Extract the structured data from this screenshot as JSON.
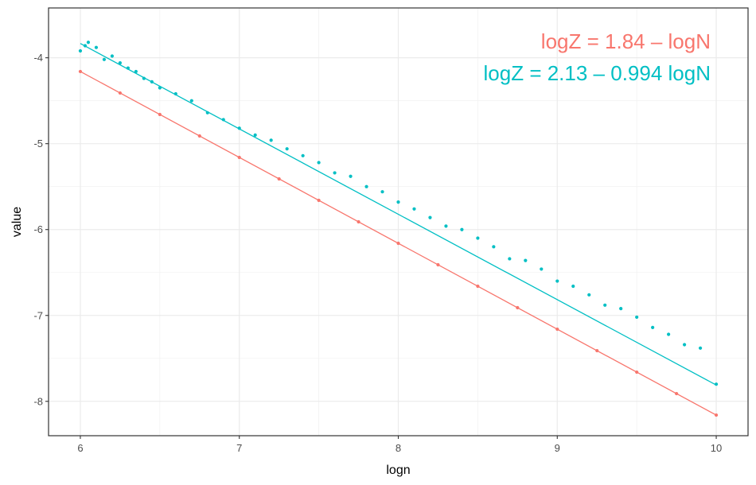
{
  "chart_data": {
    "type": "scatter",
    "xlabel": "logn",
    "ylabel": "value",
    "xlim": [
      5.8,
      10.2
    ],
    "ylim": [
      -8.4,
      -3.42
    ],
    "x_ticks": [
      6,
      7,
      8,
      9,
      10
    ],
    "x_tick_labels": [
      "6",
      "7",
      "8",
      "9",
      "10"
    ],
    "y_ticks": [
      -8,
      -7,
      -6,
      -5,
      -4
    ],
    "y_tick_labels": [
      "-8",
      "-7",
      "-6",
      "-5",
      "-4"
    ],
    "grid": true,
    "series": [
      {
        "color": "#f8766d",
        "x": [
          6.0,
          6.25,
          6.5,
          6.75,
          7.0,
          7.25,
          7.5,
          7.75,
          8.0,
          8.25,
          8.5,
          8.75,
          9.0,
          9.25,
          9.5,
          9.75,
          10.0
        ],
        "y": [
          -4.16,
          -4.41,
          -4.66,
          -4.91,
          -5.16,
          -5.41,
          -5.66,
          -5.91,
          -6.16,
          -6.41,
          -6.66,
          -6.91,
          -7.16,
          -7.41,
          -7.66,
          -7.91,
          -8.16
        ],
        "fit": {
          "intercept": 1.84,
          "slope": -1.0
        }
      },
      {
        "color": "#00bfc4",
        "x": [
          6.0,
          6.03,
          6.05,
          6.1,
          6.15,
          6.2,
          6.25,
          6.3,
          6.35,
          6.4,
          6.45,
          6.5,
          6.6,
          6.7,
          6.8,
          6.9,
          7.0,
          7.1,
          7.2,
          7.3,
          7.4,
          7.5,
          7.6,
          7.7,
          7.8,
          7.9,
          8.0,
          8.1,
          8.2,
          8.3,
          8.4,
          8.5,
          8.6,
          8.7,
          8.8,
          8.9,
          9.0,
          9.1,
          9.2,
          9.3,
          9.4,
          9.5,
          9.6,
          9.7,
          9.8,
          9.9,
          10.0
        ],
        "y": [
          -3.92,
          -3.86,
          -3.82,
          -3.88,
          -4.02,
          -3.98,
          -4.06,
          -4.12,
          -4.16,
          -4.24,
          -4.28,
          -4.35,
          -4.42,
          -4.5,
          -4.64,
          -4.72,
          -4.82,
          -4.9,
          -4.96,
          -5.06,
          -5.14,
          -5.22,
          -5.34,
          -5.38,
          -5.5,
          -5.56,
          -5.68,
          -5.76,
          -5.86,
          -5.96,
          -6.0,
          -6.1,
          -6.2,
          -6.34,
          -6.36,
          -6.46,
          -6.6,
          -6.66,
          -6.76,
          -6.88,
          -6.92,
          -7.02,
          -7.14,
          -7.22,
          -7.34,
          -7.38,
          -7.8
        ],
        "fit": {
          "intercept": 2.13,
          "slope": -0.994
        }
      }
    ],
    "annotations": [
      {
        "text": "logZ = 1.84 – logN",
        "color": "#f8766d"
      },
      {
        "text": "logZ = 2.13 – 0.994 logN",
        "color": "#00bfc4"
      }
    ]
  }
}
